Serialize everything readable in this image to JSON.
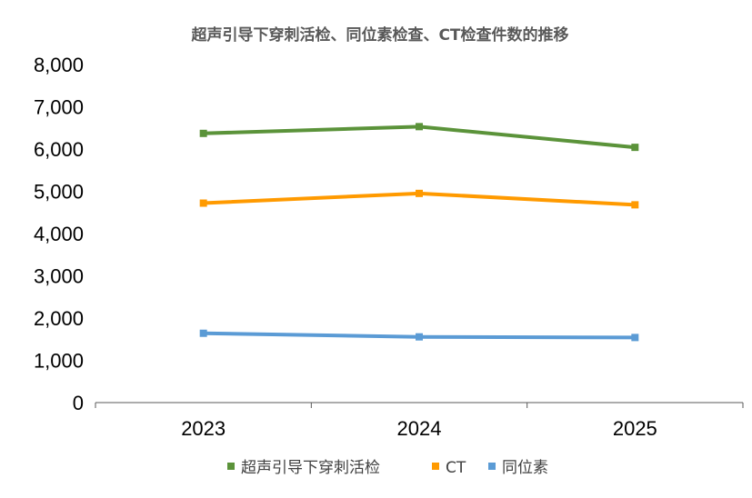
{
  "chart_data": {
    "type": "line",
    "title": "超声引导下穿刺活检、同位素检查、CT检查件数的推移",
    "xlabel": "",
    "ylabel": "",
    "categories": [
      "2023",
      "2024",
      "2025"
    ],
    "ylim": [
      0,
      8000
    ],
    "yticks": [
      0,
      1000,
      2000,
      3000,
      4000,
      5000,
      6000,
      7000,
      8000
    ],
    "ytick_labels": [
      "0",
      "1,000",
      "2,000",
      "3,000",
      "4,000",
      "5,000",
      "6,000",
      "7,000",
      "8,000"
    ],
    "grid": false,
    "legend_position": "bottom",
    "series": [
      {
        "name": "超声引导下穿刺活检",
        "color": "#5B933A",
        "values": [
          6370,
          6530,
          6040
        ]
      },
      {
        "name": "CT",
        "color": "#FF9A00",
        "values": [
          4720,
          4950,
          4680
        ]
      },
      {
        "name": "同位素",
        "color": "#5B9BD5",
        "values": [
          1640,
          1555,
          1540
        ]
      }
    ]
  }
}
